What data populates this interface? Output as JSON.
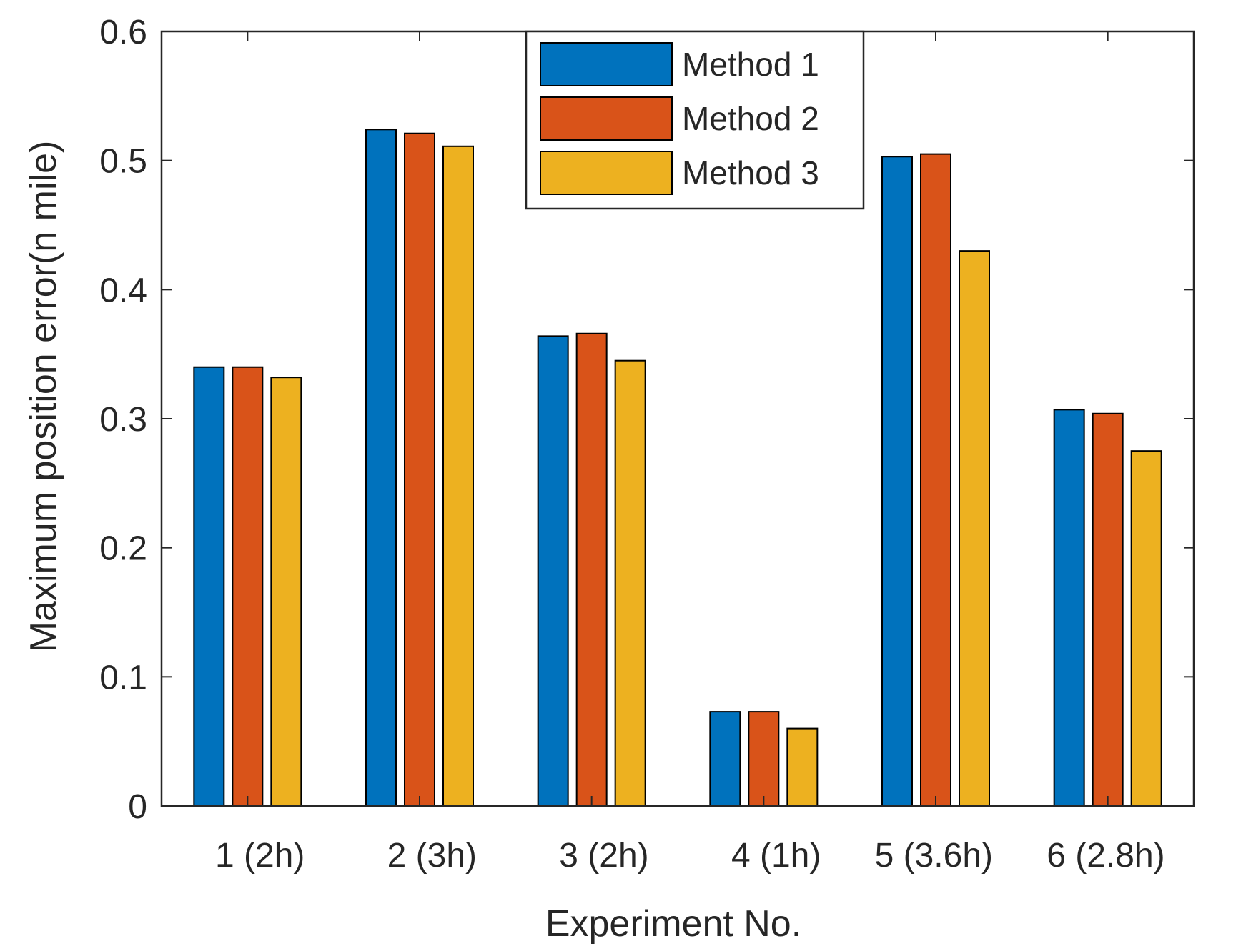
{
  "chart_data": {
    "type": "bar",
    "title": "",
    "xlabel": "Experiment No.",
    "ylabel": "Maximum  position error(n mile)",
    "ylim": [
      0,
      0.6
    ],
    "yticks": [
      "0",
      "0.1",
      "0.2",
      "0.3",
      "0.4",
      "0.5",
      "0.6"
    ],
    "categories": [
      "1 (2h)",
      "2 (3h)",
      "3 (2h)",
      "4 (1h)",
      "5 (3.6h)",
      "6 (2.8h)"
    ],
    "series": [
      {
        "name": "Method 1",
        "color": "#0072BD",
        "values": [
          0.34,
          0.524,
          0.364,
          0.073,
          0.503,
          0.307
        ]
      },
      {
        "name": "Method 2",
        "color": "#D95319",
        "values": [
          0.34,
          0.521,
          0.366,
          0.073,
          0.505,
          0.304
        ]
      },
      {
        "name": "Method 3",
        "color": "#EDB120",
        "values": [
          0.332,
          0.511,
          0.345,
          0.06,
          0.43,
          0.275
        ]
      }
    ],
    "legend_position": "top-center",
    "grid": false
  }
}
